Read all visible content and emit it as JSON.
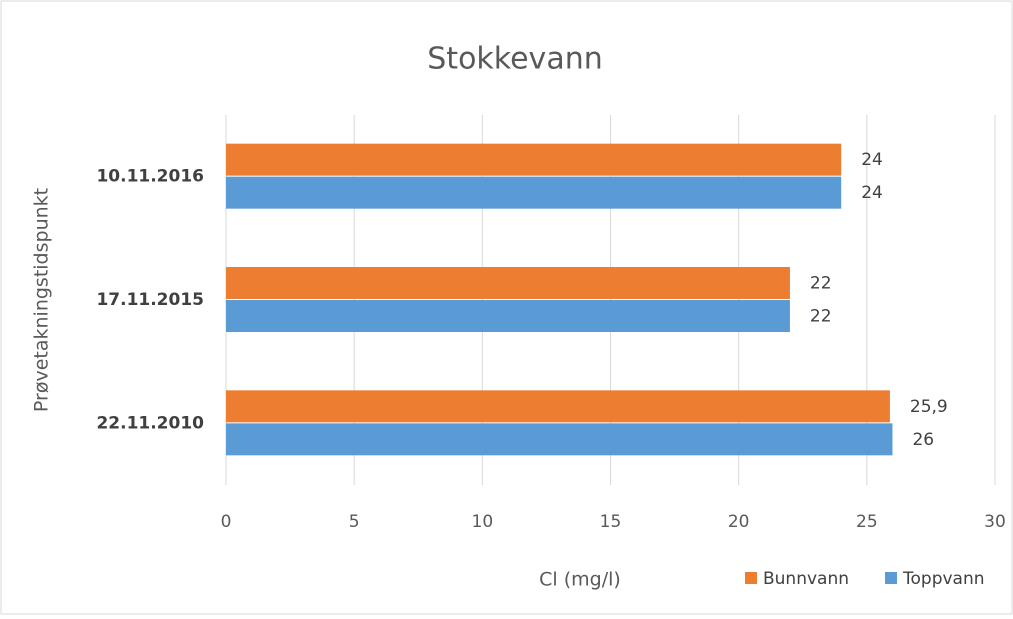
{
  "chart_data": {
    "type": "hbar",
    "title": "Stokkevann",
    "x_label": "Cl (mg/l)",
    "y_label": "Prøvetakningstidspunkt",
    "categories": [
      "10.11.2016",
      "17.11.2015",
      "22.11.2010"
    ],
    "series": [
      {
        "name": "Bunnvann",
        "color": "#ed7d31",
        "values": [
          24,
          22,
          25.9
        ],
        "value_labels": [
          "24",
          "22",
          "25,9"
        ]
      },
      {
        "name": "Toppvann",
        "color": "#5b9bd5",
        "values": [
          24,
          22,
          26
        ]
      }
    ],
    "xlim": [
      0,
      30
    ],
    "xticks": [
      0,
      5,
      10,
      15,
      20,
      25,
      30
    ],
    "grid": true,
    "legend": "bottom-right"
  }
}
